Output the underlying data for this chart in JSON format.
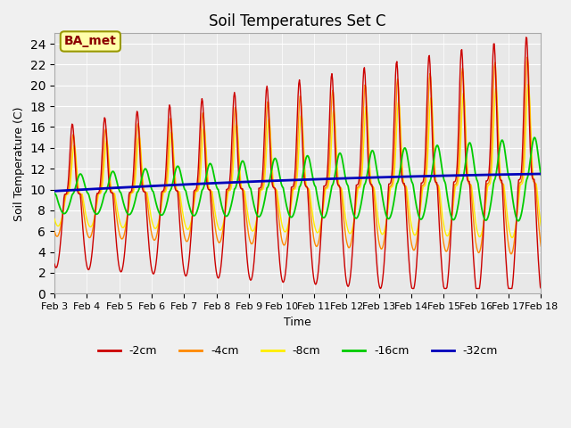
{
  "title": "Soil Temperatures Set C",
  "xlabel": "Time",
  "ylabel": "Soil Temperature (C)",
  "ylim": [
    0,
    25
  ],
  "yticks": [
    0,
    2,
    4,
    6,
    8,
    10,
    12,
    14,
    16,
    18,
    20,
    22,
    24
  ],
  "xtick_labels": [
    "Feb 3",
    "Feb 4",
    "Feb 5",
    "Feb 6",
    "Feb 7",
    "Feb 8",
    "Feb 9",
    "Feb 10",
    "Feb 11",
    "Feb 12",
    "Feb 13",
    "Feb 14",
    "Feb 15",
    "Feb 16",
    "Feb 17",
    "Feb 18"
  ],
  "colors": {
    "-2cm": "#cc0000",
    "-4cm": "#ff8800",
    "-8cm": "#ffee00",
    "-16cm": "#00cc00",
    "-32cm": "#0000bb"
  },
  "annotation_text": "BA_met",
  "annotation_color": "#8b0000",
  "annotation_bg": "#ffffaa",
  "fig_bg": "#f0f0f0",
  "plot_bg": "#e8e8e8",
  "grid_color": "#ffffff"
}
